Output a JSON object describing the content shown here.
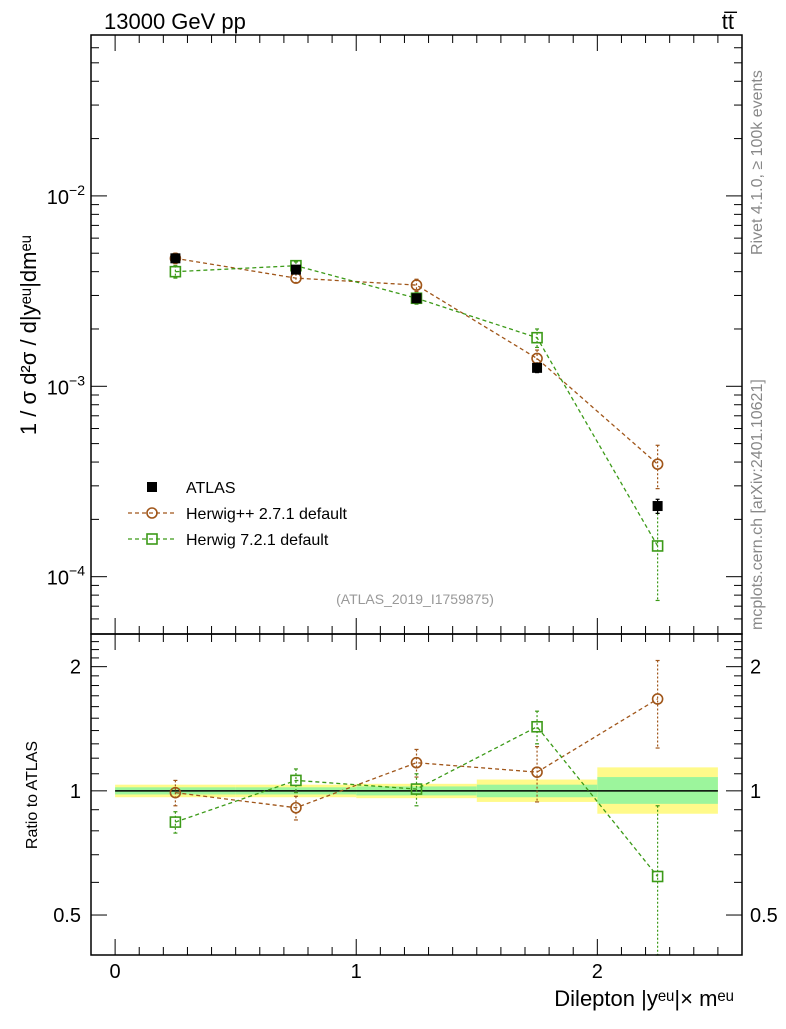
{
  "header": {
    "energy_label": "13000 GeV pp",
    "process_label": "tt̅"
  },
  "side_labels": {
    "rivet": "Rivet 4.1.0, ≥ 100k events",
    "mcplots": "mcplots.cern.ch [arXiv:2401.10621]"
  },
  "analysis_label": "(ATLAS_2019_I1759875)",
  "main_ylabel": "1 / σ  d²σ / d|yᵉᵘ|dmᵉᵘ",
  "ratio_ylabel": "Ratio to ATLAS",
  "xlabel": "Dilepton |yᵉᵘ|× mᵉᵘ",
  "main_ticks": {
    "y": [
      {
        "base": "10",
        "exp": "−2",
        "value": 0.01
      },
      {
        "base": "10",
        "exp": "−3",
        "value": 0.001
      },
      {
        "base": "10",
        "exp": "−4",
        "value": 0.0001
      }
    ]
  },
  "ratio_ticks": [
    "2",
    "1",
    "0.5"
  ],
  "x_ticks": [
    "0",
    "1",
    "2"
  ],
  "colors": {
    "herwigpp": "#a0561a",
    "herwig7": "#3c9a18",
    "data": "#000000",
    "band_inner": "#9cf59c",
    "band_outer": "#fffa8a"
  },
  "chart_data": [
    {
      "type": "scatter",
      "title": "main",
      "xlabel": "Dilepton |yᵉᵘ|× mᵉᵘ",
      "ylabel": "1 / σ  d²σ / d|yᵉᵘ|dmᵉᵘ",
      "yscale": "log",
      "xlim": [
        -0.1,
        2.6
      ],
      "ylim": [
        5e-05,
        0.07
      ],
      "x": [
        0.25,
        0.75,
        1.25,
        1.75,
        2.25
      ],
      "series": [
        {
          "name": "ATLAS",
          "key": "data",
          "marker": "filled-square",
          "values": [
            0.0047,
            0.0041,
            0.0029,
            0.00125,
            0.000235
          ],
          "errors": [
            0.0002,
            0.0002,
            0.00015,
            7e-05,
            2e-05
          ]
        },
        {
          "name": "Herwig++ 2.7.1 default",
          "key": "herwigpp",
          "marker": "open-circle",
          "values": [
            0.0047,
            0.0037,
            0.0034,
            0.0014,
            0.00039
          ],
          "errors": [
            0.0003,
            0.0002,
            0.00025,
            0.00015,
            0.0001
          ]
        },
        {
          "name": "Herwig 7.2.1 default",
          "key": "herwig7",
          "marker": "open-square",
          "values": [
            0.004,
            0.0043,
            0.0029,
            0.0018,
            0.000145
          ],
          "errors": [
            0.0003,
            0.0002,
            0.0002,
            0.0002,
            7e-05
          ]
        }
      ],
      "legend": "bottom-left"
    },
    {
      "type": "scatter",
      "title": "ratio",
      "ylabel": "Ratio to ATLAS",
      "yscale": "log",
      "xlim": [
        -0.1,
        2.6
      ],
      "ylim": [
        0.4,
        2.4
      ],
      "x": [
        0.25,
        0.75,
        1.25,
        1.75,
        2.25
      ],
      "band": {
        "edges": [
          0,
          0.5,
          1.0,
          1.5,
          2.0,
          2.5
        ],
        "inner": [
          [
            0.98,
            1.02
          ],
          [
            0.98,
            1.02
          ],
          [
            0.975,
            1.025
          ],
          [
            0.965,
            1.035
          ],
          [
            0.93,
            1.08
          ]
        ],
        "outer": [
          [
            0.965,
            1.035
          ],
          [
            0.965,
            1.035
          ],
          [
            0.96,
            1.04
          ],
          [
            0.94,
            1.065
          ],
          [
            0.88,
            1.14
          ]
        ]
      },
      "series": [
        {
          "name": "Herwig++ 2.7.1 default",
          "key": "herwigpp",
          "marker": "open-circle",
          "values": [
            0.99,
            0.91,
            1.17,
            1.11,
            1.67
          ],
          "errors": [
            0.07,
            0.06,
            0.09,
            0.17,
            0.4
          ]
        },
        {
          "name": "Herwig 7.2.1 default",
          "key": "herwig7",
          "marker": "open-square",
          "values": [
            0.84,
            1.06,
            1.01,
            1.43,
            0.62
          ],
          "errors": [
            0.05,
            0.07,
            0.09,
            0.13,
            0.3
          ]
        }
      ]
    }
  ]
}
